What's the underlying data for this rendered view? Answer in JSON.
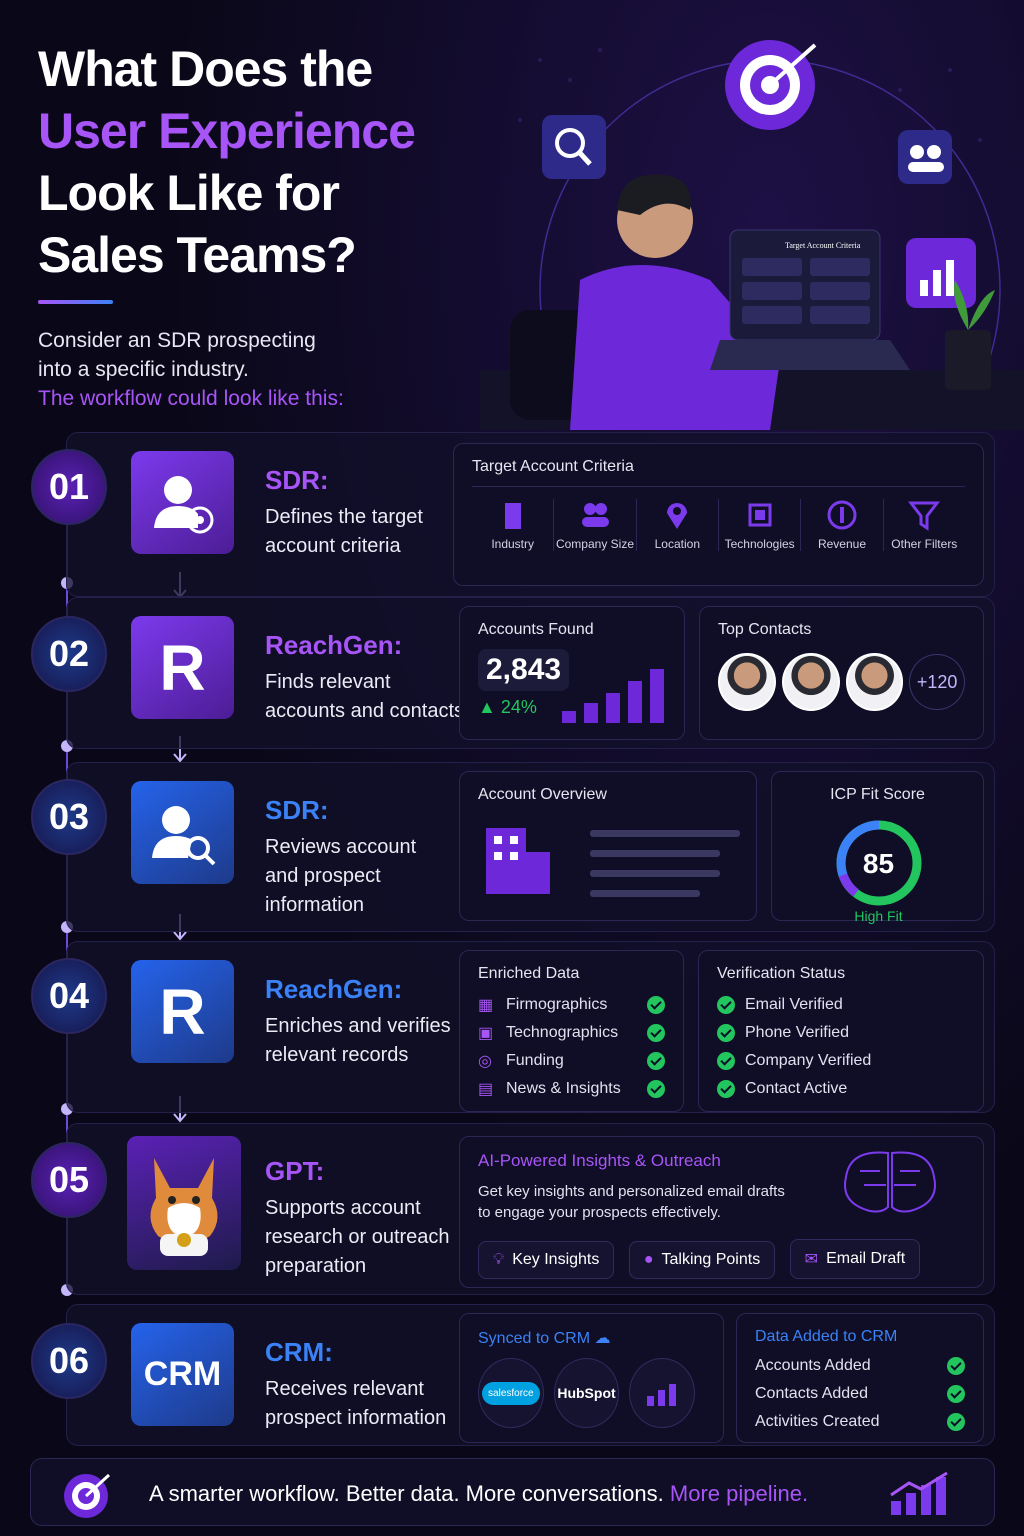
{
  "header": {
    "title": [
      "What Does the",
      "User Experience",
      "Look Like for",
      "Sales Teams?"
    ],
    "intro": [
      "Consider an SDR prospecting",
      "into a specific industry."
    ],
    "intro_highlight": "The workflow could look like this:"
  },
  "illustration": {
    "screen_title": "Target Account Criteria"
  },
  "steps": [
    {
      "number": "01",
      "actor": "SDR:",
      "description": [
        "Defines the target",
        "account criteria"
      ],
      "panels": [
        {
          "title": "Target Account Criteria",
          "items": [
            "Industry",
            "Company Size",
            "Location",
            "Technologies",
            "Revenue",
            "Other Filters"
          ]
        }
      ]
    },
    {
      "number": "02",
      "icon": "R",
      "actor": "ReachGen:",
      "description": [
        "Finds relevant",
        "accounts and contacts"
      ],
      "panels": [
        {
          "title": "Accounts Found",
          "value": "2,843",
          "change": "24%"
        },
        {
          "title": "Top Contacts",
          "more": "+120"
        }
      ]
    },
    {
      "number": "03",
      "actor": "SDR:",
      "description": [
        "Reviews account",
        "and prospect",
        "information"
      ],
      "panels": [
        {
          "title": "Account Overview"
        },
        {
          "title": "ICP Fit Score",
          "score": "85",
          "rating": "High Fit"
        }
      ]
    },
    {
      "number": "04",
      "icon": "R",
      "actor": "ReachGen:",
      "description": [
        "Enriches and verifies",
        "relevant records"
      ],
      "panels": [
        {
          "title": "Enriched Data",
          "items": [
            "Firmographics",
            "Technographics",
            "Funding",
            "News & Insights"
          ]
        },
        {
          "title": "Verification Status",
          "items": [
            "Email Verified",
            "Phone Verified",
            "Company Verified",
            "Contact Active"
          ]
        }
      ]
    },
    {
      "number": "05",
      "actor": "GPT:",
      "description": [
        "Supports account",
        "research or outreach",
        "preparation"
      ],
      "panels": [
        {
          "title": "AI-Powered Insights & Outreach",
          "text": [
            "Get key insights and personalized email drafts",
            "to engage your prospects effectively."
          ],
          "buttons": [
            "Key Insights",
            "Talking Points",
            "Email Draft"
          ]
        }
      ]
    },
    {
      "number": "06",
      "icon": "CRM",
      "actor": "CRM:",
      "description": [
        "Receives relevant",
        "prospect information"
      ],
      "panels": [
        {
          "title": "Synced to CRM",
          "logos": [
            "salesforce",
            "HubSpot"
          ]
        },
        {
          "title": "Data Added to CRM",
          "items": [
            "Accounts Added",
            "Contacts Added",
            "Activities Created"
          ]
        }
      ]
    }
  ],
  "footer": {
    "text": "A smarter workflow. Better data. More conversations.",
    "highlight": "More pipeline."
  }
}
